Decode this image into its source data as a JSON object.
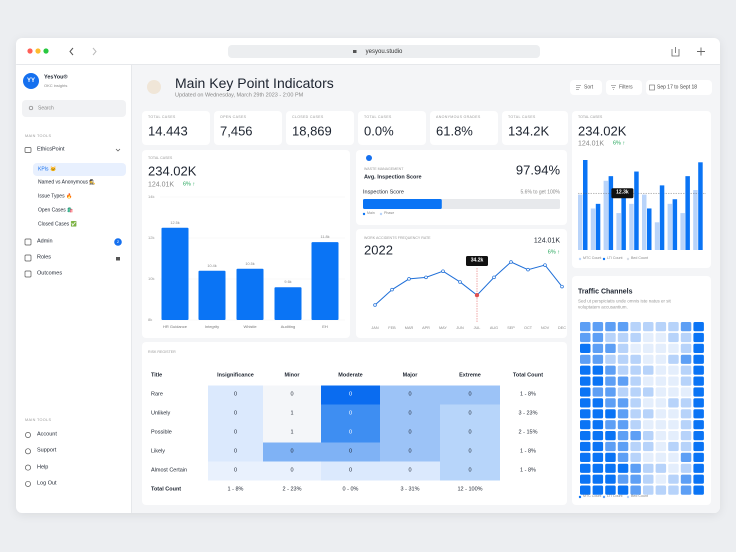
{
  "browser": {
    "url": "yesyou.studio"
  },
  "sidebar": {
    "avatar": "YY",
    "brand": "YesYou®",
    "subtitle": "OKC insights",
    "search": "Search",
    "section1": "MAIN TOOLS",
    "group": "EthicsPoint",
    "subitems": [
      "KPIs 🐱",
      "Named vs Anonymous 🕵️",
      "Issue Types 🔥",
      "Open Cases 🛍️",
      "Closed Cases ✅"
    ],
    "items": [
      {
        "label": "Admin",
        "badge": "2"
      },
      {
        "label": "Roles"
      },
      {
        "label": "Outcomes"
      }
    ],
    "section2": "MAIN TOOLS",
    "bottom": [
      "Account",
      "Support",
      "Help",
      "Log Out"
    ]
  },
  "header": {
    "title": "Main Key Point Indicators",
    "updated": "Updated on Wednesday, March 29th 2023 - 2:00 PM",
    "sort": "Sort",
    "filters": "Filters",
    "date": "Sep 17 to Sept 18"
  },
  "kpis": [
    {
      "label": "TOTAL CASES",
      "value": "14.443"
    },
    {
      "label": "OPEN CASES",
      "value": "7,456"
    },
    {
      "label": "CLOSED CASES",
      "value": "18,869"
    },
    {
      "label": "TOTAL CASES",
      "value": "0.0%"
    },
    {
      "label": "ANONYMOUS GRADES",
      "value": "61.8%"
    },
    {
      "label": "TOTAL CASES",
      "value": "134.2K"
    }
  ],
  "cases_chart": {
    "type": "bar",
    "label": "TOTAL CASES",
    "total": "234.02K",
    "sub": "124.01K",
    "change": "6% ↑",
    "categories": [
      "HR Guidance",
      "Integrity",
      "Whistle",
      "Auditing",
      "EH"
    ],
    "values": [
      12.5,
      10.4,
      10.5,
      9.6,
      11.8
    ],
    "value_labels": [
      "12.5k",
      "10.4k",
      "10.5k",
      "9.6k",
      "11.8k"
    ],
    "color": "#0a74f5",
    "ylim": [
      8,
      14
    ],
    "yticks": [
      {
        "value": 8,
        "label": "8k"
      },
      {
        "value": 10,
        "label": "10k"
      },
      {
        "value": 12,
        "label": "12k"
      },
      {
        "value": 14,
        "label": "14k"
      }
    ]
  },
  "waste": {
    "label": "WASTE MANAGEMENT",
    "title": "Avg. Inspection Score",
    "value": "97.94%",
    "bar_label": "Inspection Score",
    "bar_note": "5.6% to get 100%",
    "progress": 40,
    "legend": [
      "Main",
      "Phase"
    ]
  },
  "accidents_chart": {
    "type": "line",
    "label": "WORK ACCIDENTS FREQUENCY RATE",
    "year": "2022",
    "sub": "124.01K",
    "change": "6% ↑",
    "categories": [
      "JAN",
      "FEB",
      "MAR",
      "APR",
      "MAY",
      "JUN",
      "JUL",
      "AUG",
      "SEP",
      "OCT",
      "NOV",
      "DEC"
    ],
    "values": [
      31,
      36,
      39.5,
      40,
      42,
      38.5,
      34.2,
      40,
      45,
      42.5,
      44,
      37
    ],
    "value_labels": [
      null,
      null,
      null,
      null,
      null,
      null,
      "34.2k",
      null,
      null,
      null,
      null,
      null
    ],
    "color": "#1f6fd8"
  },
  "side_chart": {
    "type": "bar",
    "label": "TOTAL CASES",
    "total": "234.02K",
    "sub": "124.01K",
    "change": "6% ↑",
    "series": [
      {
        "name": "MTC Count",
        "color": "#b9d4fa",
        "values": [
          12,
          9,
          15,
          8,
          10,
          12,
          6,
          10,
          8,
          13
        ]
      },
      {
        "name": "LTI Count",
        "color": "#0a74f5",
        "values": [
          19.5,
          10,
          16,
          12.3,
          17,
          9,
          14,
          11,
          16,
          19
        ],
        "value_labels": [
          null,
          null,
          null,
          "12.3k",
          null,
          null,
          null,
          null,
          null,
          null
        ]
      }
    ],
    "legend_extra": {
      "name": "Bed Count",
      "color": "#d7dce4"
    }
  },
  "traffic": {
    "type": "heatmap",
    "title": "Traffic Channels",
    "description": "Sed ut perspiciatis unde omnis iste natus er sit voluptatem accusantium.",
    "colors": [
      "#e4eefc",
      "#b7d3fa",
      "#5d9ff5",
      "#0a74f5"
    ],
    "levels": [
      [
        2,
        2,
        2,
        2,
        1,
        1,
        1,
        1,
        2,
        3
      ],
      [
        2,
        2,
        1,
        1,
        1,
        0,
        0,
        1,
        1,
        3
      ],
      [
        3,
        2,
        2,
        1,
        0,
        0,
        0,
        0,
        1,
        3
      ],
      [
        2,
        2,
        1,
        1,
        1,
        0,
        0,
        1,
        2,
        3
      ],
      [
        3,
        3,
        2,
        1,
        1,
        1,
        0,
        0,
        1,
        3
      ],
      [
        3,
        3,
        2,
        2,
        1,
        0,
        0,
        0,
        1,
        3
      ],
      [
        3,
        2,
        2,
        1,
        1,
        1,
        0,
        0,
        0,
        3
      ],
      [
        3,
        3,
        2,
        2,
        1,
        0,
        0,
        1,
        1,
        3
      ],
      [
        3,
        3,
        3,
        2,
        1,
        1,
        0,
        0,
        1,
        3
      ],
      [
        3,
        3,
        2,
        2,
        1,
        0,
        0,
        0,
        1,
        3
      ],
      [
        3,
        3,
        3,
        2,
        2,
        1,
        0,
        0,
        1,
        3
      ],
      [
        3,
        3,
        2,
        2,
        1,
        1,
        0,
        1,
        1,
        3
      ],
      [
        3,
        3,
        3,
        2,
        1,
        0,
        0,
        0,
        2,
        3
      ],
      [
        3,
        3,
        3,
        3,
        2,
        1,
        1,
        0,
        1,
        3
      ],
      [
        3,
        3,
        3,
        2,
        2,
        1,
        0,
        1,
        2,
        3
      ],
      [
        3,
        3,
        3,
        3,
        2,
        1,
        1,
        1,
        2,
        3
      ]
    ],
    "legend": [
      "MTC Count",
      "LTI Count",
      "Bed Count"
    ]
  },
  "risk": {
    "label": "RISK REGISTER",
    "columns": [
      "Title",
      "Insignificance",
      "Minor",
      "Moderate",
      "Major",
      "Extreme",
      "Total Count"
    ],
    "rows": [
      {
        "title": "Rare",
        "cells": [
          0,
          0,
          0,
          0,
          0
        ],
        "total": "1 - 8%",
        "colors": [
          "#dbe9fd",
          "#f4f6f9",
          "#0a6cf0",
          "#9cc3f7",
          "#9cc3f7"
        ]
      },
      {
        "title": "Unlikely",
        "cells": [
          0,
          1,
          0,
          0,
          0
        ],
        "total": "3 - 23%",
        "colors": [
          "#dbe9fd",
          "#f4f6f9",
          "#3e8ef2",
          "#9cc3f7",
          "#b7d5fa"
        ]
      },
      {
        "title": "Possible",
        "cells": [
          0,
          1,
          0,
          0,
          0
        ],
        "total": "2 - 15%",
        "colors": [
          "#dbe9fd",
          "#f4f6f9",
          "#3e8ef2",
          "#9cc3f7",
          "#b7d5fa"
        ]
      },
      {
        "title": "Likely",
        "cells": [
          0,
          0,
          0,
          0,
          0
        ],
        "total": "1 - 8%",
        "colors": [
          "#dbe9fd",
          "#7fb2f5",
          "#7fb2f5",
          "#9cc3f7",
          "#b7d5fa"
        ]
      },
      {
        "title": "Almost Certain",
        "cells": [
          0,
          0,
          0,
          0,
          0
        ],
        "total": "1 - 8%",
        "colors": [
          "#e9f1fd",
          "#e9f1fd",
          "#dbe9fd",
          "#dbe9fd",
          "#b7d5fa"
        ]
      }
    ],
    "totals_label": "Total Count",
    "totals": [
      "1 - 8%",
      "2 - 23%",
      "0 - 0%",
      "3 - 31%",
      "12 - 100%"
    ]
  }
}
